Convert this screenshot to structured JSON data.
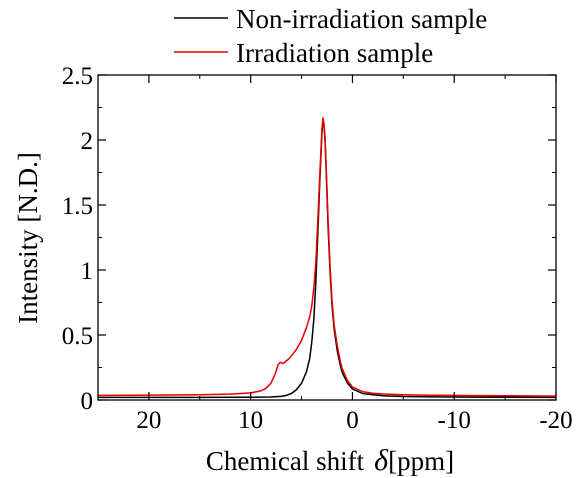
{
  "chart_data": {
    "type": "line",
    "title": "",
    "xlabel": "Chemical shift",
    "xlabel_symbol": "δ",
    "xlabel_unit": "[ppm]",
    "ylabel": "Intensity [N.D.]",
    "xlim": [
      25,
      -20
    ],
    "ylim": [
      0,
      2.5
    ],
    "x_reversed": true,
    "x_ticks": [
      20,
      10,
      0,
      -10,
      -20
    ],
    "x_tick_labels": [
      "20",
      "10",
      "0",
      "-10",
      "-20"
    ],
    "y_ticks": [
      0,
      0.5,
      1,
      1.5,
      2,
      2.5
    ],
    "y_tick_labels": [
      "0",
      "0.5",
      "1",
      "1.5",
      "2",
      "2.5"
    ],
    "grid": false,
    "legend_position": "top-right",
    "series": [
      {
        "name": "Non-irradiation sample",
        "color": "#000000",
        "x": [
          25,
          20,
          15,
          12,
          10,
          9,
          8,
          7,
          6.5,
          6,
          5.5,
          5,
          4.5,
          4.2,
          4.0,
          3.8,
          3.6,
          3.4,
          3.2,
          3.0,
          2.9,
          2.8,
          2.7,
          2.6,
          2.4,
          2.2,
          2.0,
          1.8,
          1.5,
          1.2,
          1.0,
          0.5,
          0,
          -1,
          -2,
          -3,
          -5,
          -8,
          -12,
          -20
        ],
        "y": [
          0.02,
          0.02,
          0.02,
          0.021,
          0.021,
          0.022,
          0.023,
          0.028,
          0.035,
          0.05,
          0.08,
          0.13,
          0.22,
          0.32,
          0.44,
          0.62,
          0.9,
          1.28,
          1.7,
          2.05,
          2.15,
          2.12,
          2.0,
          1.8,
          1.35,
          0.98,
          0.72,
          0.55,
          0.38,
          0.27,
          0.21,
          0.13,
          0.085,
          0.05,
          0.04,
          0.033,
          0.027,
          0.024,
          0.022,
          0.02
        ]
      },
      {
        "name": "Irradiation sample",
        "color": "#e60000",
        "x": [
          25,
          20,
          15,
          12,
          10,
          9,
          8.5,
          8,
          7.6,
          7.3,
          7.1,
          6.8,
          6.5,
          6.2,
          6.0,
          5.5,
          5.0,
          4.5,
          4.2,
          4.0,
          3.8,
          3.6,
          3.4,
          3.2,
          3.0,
          2.9,
          2.8,
          2.7,
          2.6,
          2.4,
          2.2,
          2.0,
          1.8,
          1.5,
          1.2,
          1.0,
          0.5,
          0,
          -1,
          -2,
          -3,
          -5,
          -8,
          -12,
          -20
        ],
        "y": [
          0.035,
          0.038,
          0.04,
          0.045,
          0.055,
          0.07,
          0.09,
          0.13,
          0.2,
          0.27,
          0.29,
          0.28,
          0.3,
          0.32,
          0.34,
          0.39,
          0.46,
          0.56,
          0.64,
          0.72,
          0.86,
          1.05,
          1.38,
          1.75,
          2.08,
          2.17,
          2.13,
          2.02,
          1.84,
          1.4,
          1.02,
          0.76,
          0.58,
          0.42,
          0.3,
          0.24,
          0.15,
          0.1,
          0.065,
          0.052,
          0.046,
          0.04,
          0.036,
          0.034,
          0.03
        ]
      }
    ]
  }
}
